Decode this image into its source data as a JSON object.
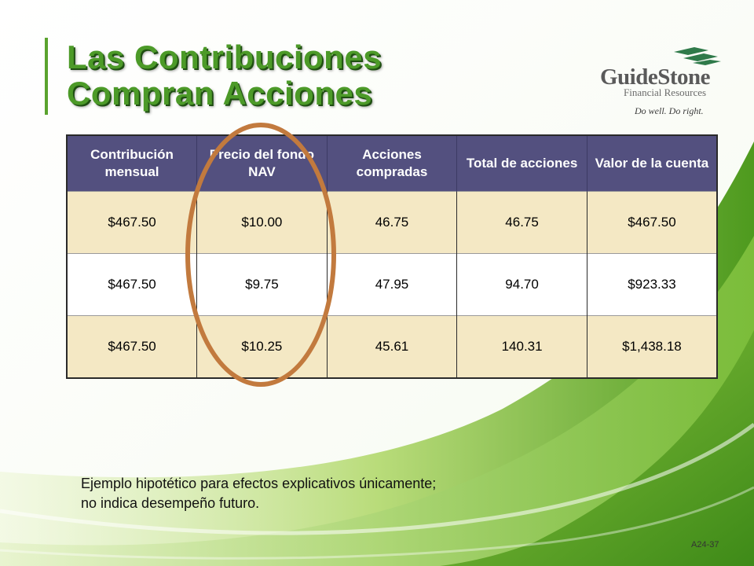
{
  "title": {
    "line1": "Las Contribuciones",
    "line2": "Compran Acciones"
  },
  "logo": {
    "name": "GuideStone",
    "subtitle": "Financial Resources",
    "tagline": "Do well. Do right.",
    "mark_color": "#2f7a4a"
  },
  "table": {
    "headers": [
      "Contribución mensual",
      "Precio del fondo NAV",
      "Acciones compradas",
      "Total de acciones",
      "Valor de la cuenta"
    ],
    "rows": [
      [
        "$467.50",
        "$10.00",
        "46.75",
        "46.75",
        "$467.50"
      ],
      [
        "$467.50",
        "$9.75",
        "47.95",
        "94.70",
        "$923.33"
      ],
      [
        "$467.50",
        "$10.25",
        "45.61",
        "140.31",
        "$1,438.18"
      ]
    ]
  },
  "note": {
    "line1": "Ejemplo hipotético para efectos explicativos únicamente;",
    "line2": "no indica desempeño futuro."
  },
  "slide_id": "A24-37",
  "colors": {
    "title_green": "#4c9a28",
    "header_bg": "#53507f",
    "row_tan": "#f4e8c4",
    "oval": "#c27a3e"
  }
}
